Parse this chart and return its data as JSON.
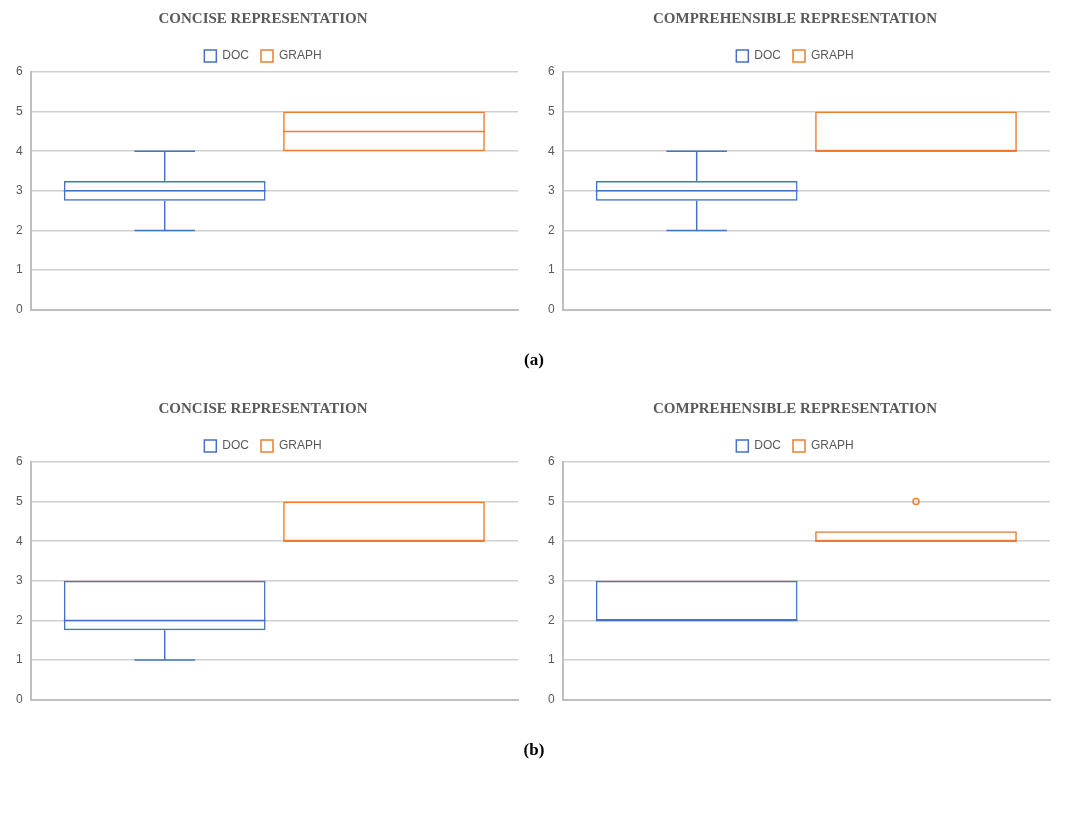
{
  "chart_data": [
    {
      "type": "box",
      "title": "CONCISE REPRESENTATION",
      "categories": [
        null
      ],
      "ylim": [
        0,
        6
      ],
      "yticks": [
        0,
        1,
        2,
        3,
        4,
        5,
        6
      ],
      "grid": "y",
      "legend": "top",
      "annotations": [
        "(a)"
      ],
      "series": [
        {
          "name": "DOC",
          "color": "#4472c4",
          "boxes": [
            {
              "low": 2,
              "q1": 2.75,
              "median": 3,
              "q3": 3.25,
              "high": 4
            }
          ]
        },
        {
          "name": "GRAPH",
          "color": "#ed7d31",
          "boxes": [
            {
              "low": 4,
              "q1": 4,
              "median": 4.5,
              "q3": 5,
              "high": 5
            }
          ]
        }
      ]
    },
    {
      "type": "box",
      "title": "COMPREHENSIBLE REPRESENTATION",
      "categories": [
        null
      ],
      "ylim": [
        0,
        6
      ],
      "yticks": [
        0,
        1,
        2,
        3,
        4,
        5,
        6
      ],
      "grid": "y",
      "legend": "top",
      "series": [
        {
          "name": "DOC",
          "color": "#4472c4",
          "boxes": [
            {
              "low": 2,
              "q1": 2.75,
              "median": 3,
              "q3": 3.25,
              "high": 4
            }
          ]
        },
        {
          "name": "GRAPH",
          "color": "#ed7d31",
          "boxes": [
            {
              "low": 4,
              "q1": 4,
              "median": 4,
              "q3": 5,
              "high": 5
            }
          ]
        }
      ]
    },
    {
      "type": "box",
      "title": "CONCISE REPRESENTATION",
      "categories": [
        null
      ],
      "ylim": [
        0,
        6
      ],
      "yticks": [
        0,
        1,
        2,
        3,
        4,
        5,
        6
      ],
      "grid": "y",
      "legend": "top",
      "annotations": [
        "(b)"
      ],
      "series": [
        {
          "name": "DOC",
          "color": "#4472c4",
          "boxes": [
            {
              "low": 1,
              "q1": 1.75,
              "median": 2,
              "q3": 3,
              "high": 3
            }
          ]
        },
        {
          "name": "GRAPH",
          "color": "#ed7d31",
          "boxes": [
            {
              "low": 4,
              "q1": 4,
              "median": 4,
              "q3": 5,
              "high": 5
            }
          ]
        }
      ]
    },
    {
      "type": "box",
      "title": "COMPREHENSIBLE REPRESENTATION",
      "categories": [
        null
      ],
      "ylim": [
        0,
        6
      ],
      "yticks": [
        0,
        1,
        2,
        3,
        4,
        5,
        6
      ],
      "grid": "y",
      "legend": "top",
      "series": [
        {
          "name": "DOC",
          "color": "#4472c4",
          "boxes": [
            {
              "low": 2,
              "q1": 2,
              "median": 2,
              "q3": 3,
              "high": 3
            }
          ]
        },
        {
          "name": "GRAPH",
          "color": "#ed7d31",
          "boxes": [
            {
              "low": 4,
              "q1": 4,
              "median": 4,
              "q3": 4.25,
              "high": 4.25,
              "outliers": [
                5
              ]
            }
          ]
        }
      ]
    }
  ]
}
